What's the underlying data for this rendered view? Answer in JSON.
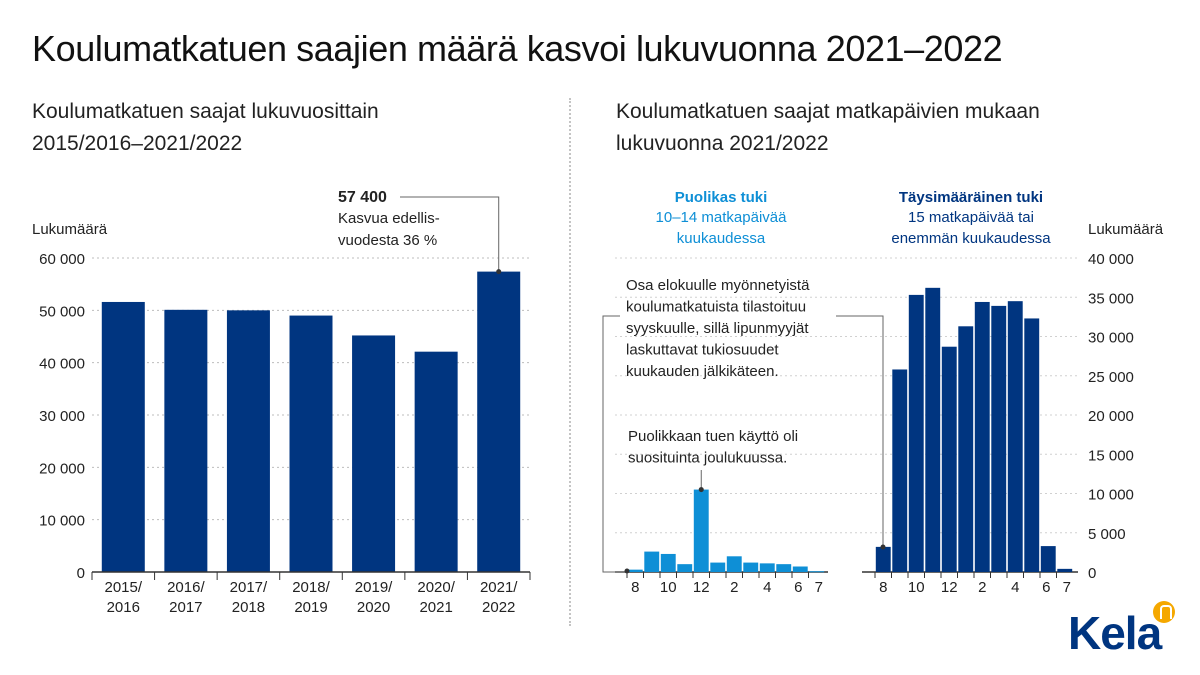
{
  "title": "Koulumatkatuen saajien määrä kasvoi lukuvuonna 2021–2022",
  "left": {
    "subtitle_lines": [
      "Koulumatkatuen saajat lukuvuosittain",
      "2015/2016–2021/2022"
    ],
    "ylabel": "Lukumäärä",
    "annotation": {
      "value": "57 400",
      "lines": [
        "Kasvua edellis-",
        "vuodesta 36 %"
      ]
    }
  },
  "right": {
    "subtitle_lines": [
      "Koulumatkatuen saajat matkapäivien mukaan",
      "lukuvuonna 2021/2022"
    ],
    "ylabel": "Lukumäärä",
    "group_half": {
      "title": "Puolikas tuki",
      "lines": [
        "10–14 matkapäivää",
        "kuukaudessa"
      ]
    },
    "group_full": {
      "title": "Täysimääräinen tuki",
      "lines": [
        "15 matkapäivää tai",
        "enemmän kuukaudessa"
      ]
    },
    "note_august": [
      "Osa elokuulle myönnetyistä",
      "koulumatkatuista tilastoituu",
      "syyskuulle, sillä lipunmyyjät",
      "laskuttavat tukiosuudet",
      "kuukauden jälkikäteen."
    ],
    "note_december": [
      "Puolikkaan tuen käyttö oli",
      "suosituinta joulukuussa."
    ]
  },
  "logo": "Kela",
  "colors": {
    "dark_blue": "#003580",
    "light_blue": "#0e8fd6",
    "axis": "#333333"
  },
  "chart_data": [
    {
      "type": "bar",
      "title": "Koulumatkatuen saajat lukuvuosittain 2015/2016–2021/2022",
      "ylabel": "Lukumäärä",
      "categories": [
        [
          "2015/",
          "2016"
        ],
        [
          "2016/",
          "2017"
        ],
        [
          "2017/",
          "2018"
        ],
        [
          "2018/",
          "2019"
        ],
        [
          "2019/",
          "2020"
        ],
        [
          "2020/",
          "2021"
        ],
        [
          "2021/",
          "2022"
        ]
      ],
      "values": [
        51600,
        50100,
        50000,
        49000,
        45200,
        42100,
        57400
      ],
      "ylim": [
        0,
        60000
      ],
      "yticks": [
        0,
        10000,
        20000,
        30000,
        40000,
        50000,
        60000
      ],
      "ytick_labels": [
        "0",
        "10 000",
        "20 000",
        "30 000",
        "40 000",
        "50 000",
        "60 000"
      ]
    },
    {
      "type": "bar",
      "title": "Koulumatkatuen saajat matkapäivien mukaan lukuvuonna 2021/2022",
      "ylabel": "Lukumäärä",
      "categories": [
        "8",
        "9",
        "10",
        "11",
        "12",
        "1",
        "2",
        "3",
        "4",
        "5",
        "6",
        "7"
      ],
      "xtick_labels": [
        "8",
        "10",
        "12",
        "2",
        "4",
        "6",
        "7"
      ],
      "series": [
        {
          "name": "Puolikas tuki",
          "values": [
            300,
            2600,
            2300,
            1000,
            10500,
            1200,
            2000,
            1200,
            1100,
            1000,
            700,
            100
          ]
        },
        {
          "name": "Täysimääräinen tuki",
          "values": [
            3200,
            25800,
            35300,
            36200,
            28700,
            31300,
            34400,
            33900,
            34500,
            32300,
            3300,
            400
          ]
        }
      ],
      "ylim": [
        0,
        40000
      ],
      "yticks": [
        0,
        5000,
        10000,
        15000,
        20000,
        25000,
        30000,
        35000,
        40000
      ],
      "ytick_labels": [
        "0",
        "5 000",
        "10 000",
        "15 000",
        "20 000",
        "25 000",
        "30 000",
        "35 000",
        "40 000"
      ]
    }
  ]
}
